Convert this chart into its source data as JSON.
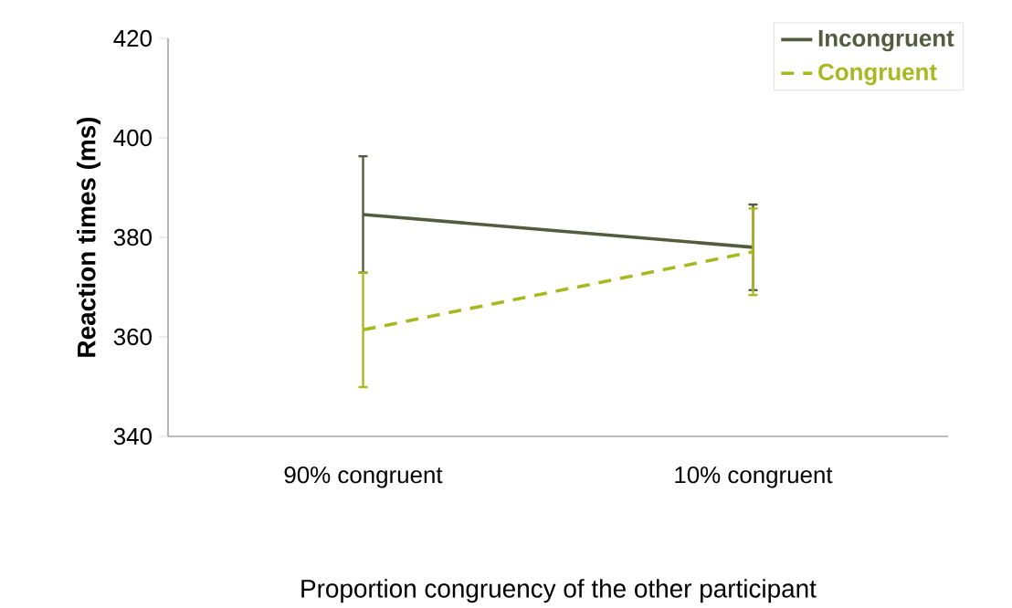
{
  "chart_data": {
    "type": "line",
    "xlabel": "Proportion congruency of the other participant",
    "ylabel": "Reaction times (ms)",
    "categories": [
      "90% congruent",
      "10% congruent"
    ],
    "series": [
      {
        "name": "Incongruent",
        "color": "#545c40",
        "values": [
          384.6,
          378.0
        ],
        "errors": [
          11.7,
          8.6
        ],
        "line_style": "solid"
      },
      {
        "name": "Congruent",
        "color": "#a8b820",
        "values": [
          361.4,
          377.1
        ],
        "errors": [
          11.5,
          8.7
        ],
        "line_style": "dashed"
      }
    ],
    "ylim": [
      340,
      420
    ],
    "yticks": [
      340,
      360,
      380,
      400,
      420
    ],
    "grid": false,
    "legend": "top right",
    "marker": "none"
  }
}
